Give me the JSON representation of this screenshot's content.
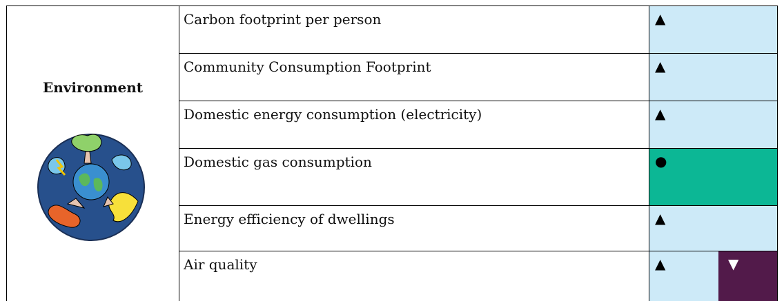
{
  "section": "Environment",
  "rows": [
    {
      "indicator": "Carbon footprint per person",
      "status": [
        "▲"
      ]
    },
    {
      "indicator": "Community Consumption Footprint",
      "status": [
        "▲"
      ]
    },
    {
      "indicator": "Domestic energy consumption (electricity)",
      "status": [
        "▲"
      ]
    },
    {
      "indicator": "Domestic gas consumption",
      "status": [
        "●"
      ]
    },
    {
      "indicator": "Energy efficiency of dwellings",
      "status": [
        "▲"
      ]
    },
    {
      "indicator": "Air quality",
      "status": [
        "▲",
        "▼"
      ]
    }
  ]
}
